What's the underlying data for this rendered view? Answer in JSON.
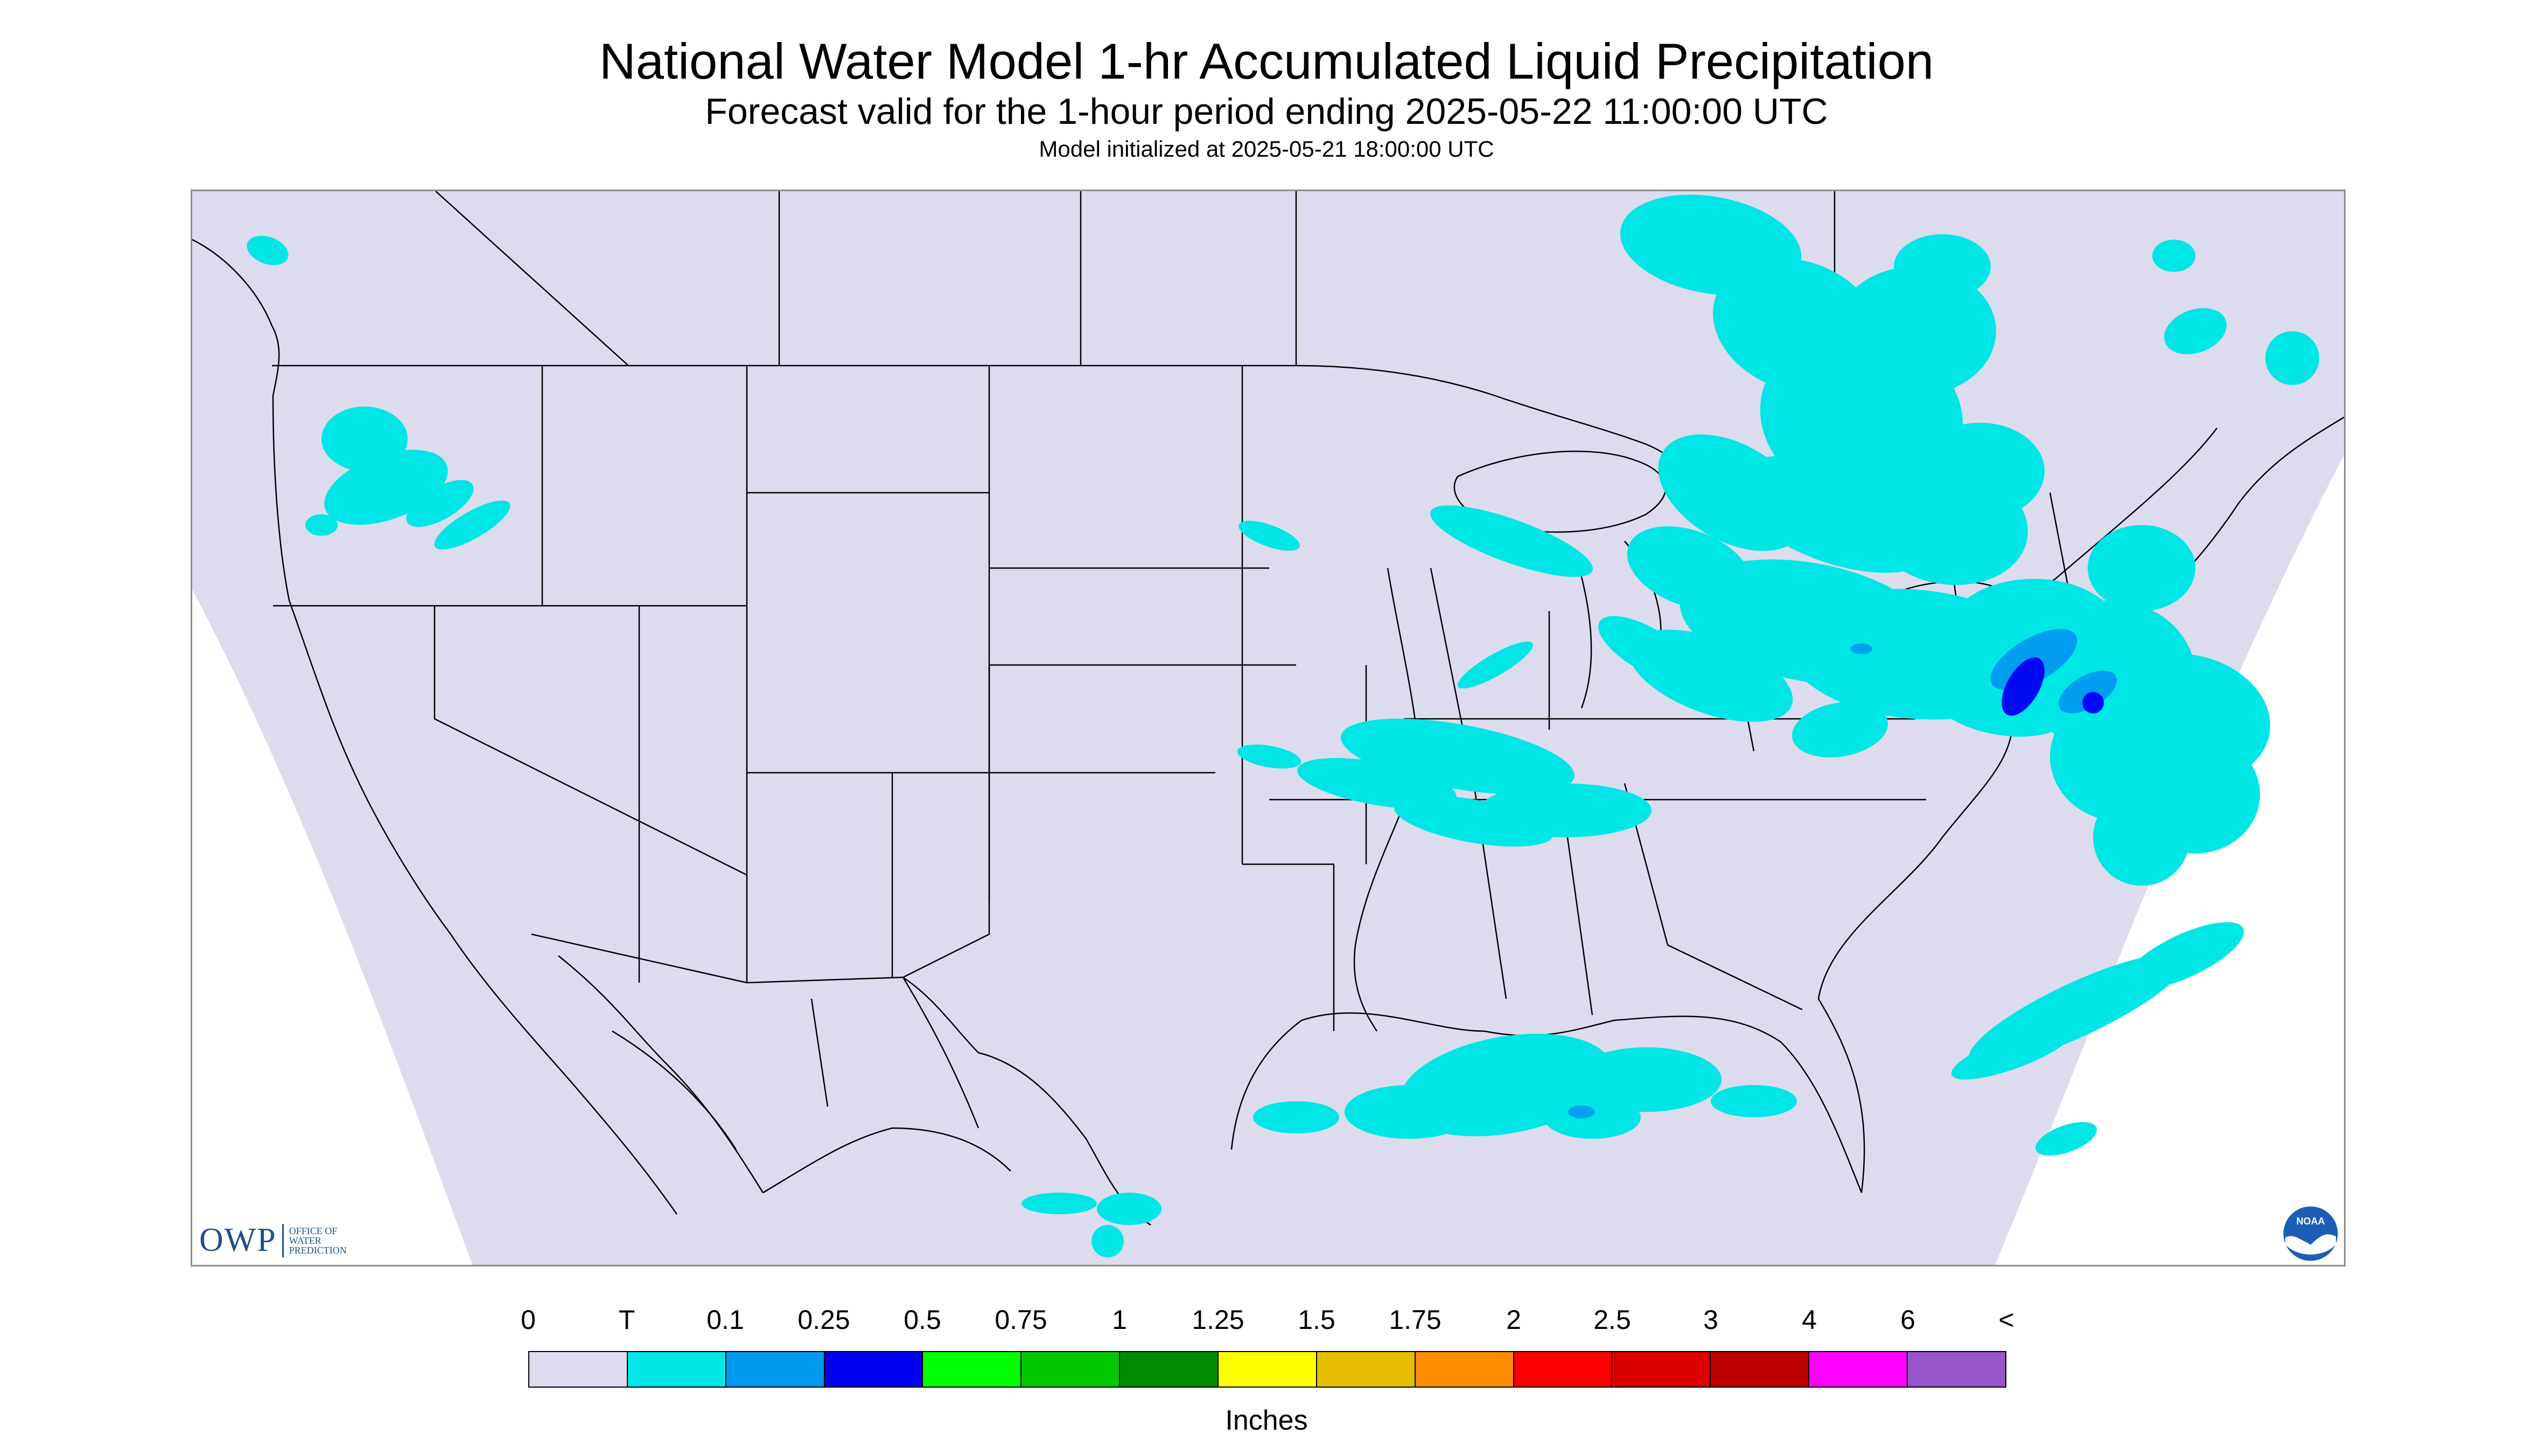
{
  "header": {
    "title": "National Water Model 1-hr Accumulated Liquid Precipitation",
    "subtitle": "Forecast valid for the 1-hour period ending 2025-05-22 11:00:00 UTC",
    "init_line": "Model initialized at 2025-05-21 18:00:00 UTC"
  },
  "map": {
    "background_color": "#dcdcee",
    "outside_color": "#ffffff",
    "border_color": "#000000",
    "region": "conterminous-united-states"
  },
  "logos": {
    "owp_mark": "OWP",
    "owp_text_1": "OFFICE OF",
    "owp_text_2": "WATER",
    "owp_text_3": "PREDICTION",
    "noaa_text": "NOAA",
    "noaa_icon": "noaa-seagull-icon"
  },
  "legend": {
    "labels": [
      "0",
      "T",
      "0.1",
      "0.25",
      "0.5",
      "0.75",
      "1",
      "1.25",
      "1.5",
      "1.75",
      "2",
      "2.5",
      "3",
      "4",
      "6",
      "<"
    ],
    "colors": [
      "#dcdcee",
      "#00e6e6",
      "#0099f0",
      "#0000f0",
      "#00ff00",
      "#00c800",
      "#008c00",
      "#ffff00",
      "#e6be00",
      "#ff8c00",
      "#ff0000",
      "#dc0000",
      "#be0000",
      "#ff00ff",
      "#9655c8"
    ],
    "units": "Inches"
  }
}
